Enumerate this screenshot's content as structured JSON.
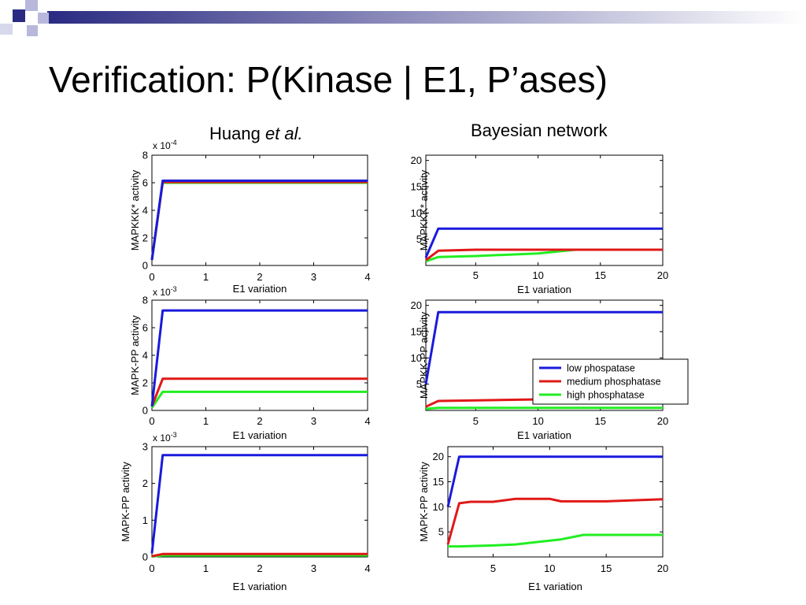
{
  "title": "Verification: P(Kinase | E1, P’ases)",
  "column_headers": {
    "left_prefix": "Huang ",
    "left_italic": "et al.",
    "right": "Bayesian network"
  },
  "colors": {
    "low": "#1a1adc",
    "medium": "#e01818",
    "high": "#22ee22",
    "decor_dark": "#2a2a82",
    "decor_light": "#b8b8dc"
  },
  "legend": {
    "placement": "inside-right",
    "entries": [
      {
        "label": "low phospatase",
        "color": "#1a1adc"
      },
      {
        "label": "medium phosphatase",
        "color": "#e01818"
      },
      {
        "label": "high phosphatase",
        "color": "#22ee22"
      }
    ]
  },
  "chart_data": [
    {
      "type": "line",
      "xlabel": "E1 variation",
      "ylabel": "MAPKKK* activity",
      "multiplier": "x 10",
      "exponent": "-4",
      "xlim": [
        0,
        4
      ],
      "ylim": [
        0,
        8
      ],
      "xticks": [
        0,
        1,
        2,
        3,
        4
      ],
      "yticks": [
        0,
        2,
        4,
        6,
        8
      ],
      "grid": false,
      "series": [
        {
          "color": "#1a1adc",
          "x": [
            0,
            0.2,
            4
          ],
          "y": [
            0.4,
            6.15,
            6.15
          ]
        },
        {
          "color": "#e01818",
          "x": [
            0,
            0.2,
            4
          ],
          "y": [
            0.4,
            6.05,
            6.05
          ]
        },
        {
          "color": "#22ee22",
          "x": [
            0,
            0.2,
            4
          ],
          "y": [
            0.4,
            6.0,
            6.0
          ]
        }
      ]
    },
    {
      "type": "line",
      "xlabel": "E1 variation",
      "ylabel": "MAPKKK* activity",
      "multiplier": "",
      "exponent": "",
      "xlim": [
        1,
        20
      ],
      "ylim": [
        0,
        21
      ],
      "xticks": [
        5,
        10,
        15,
        20
      ],
      "yticks": [
        5,
        10,
        15,
        20
      ],
      "grid": false,
      "series": [
        {
          "color": "#1a1adc",
          "x": [
            1,
            2,
            20
          ],
          "y": [
            1.5,
            7,
            7
          ]
        },
        {
          "color": "#e01818",
          "x": [
            1,
            2,
            5,
            10,
            13,
            20
          ],
          "y": [
            1,
            2.8,
            3.0,
            3.0,
            3.0,
            3.0
          ]
        },
        {
          "color": "#22ee22",
          "x": [
            1,
            2,
            5,
            10,
            13,
            20
          ],
          "y": [
            0.8,
            1.6,
            1.8,
            2.3,
            3.0,
            3.0
          ]
        }
      ]
    },
    {
      "type": "line",
      "xlabel": "E1 variation",
      "ylabel": "MAPK-PP activity",
      "multiplier": "x 10",
      "exponent": "-3",
      "xlim": [
        0,
        4
      ],
      "ylim": [
        0,
        8
      ],
      "xticks": [
        0,
        1,
        2,
        3,
        4
      ],
      "yticks": [
        0,
        2,
        4,
        6,
        8
      ],
      "grid": false,
      "series": [
        {
          "color": "#1a1adc",
          "x": [
            0,
            0.2,
            4
          ],
          "y": [
            0.3,
            7.25,
            7.25
          ]
        },
        {
          "color": "#e01818",
          "x": [
            0,
            0.2,
            4
          ],
          "y": [
            0.3,
            2.3,
            2.3
          ]
        },
        {
          "color": "#22ee22",
          "x": [
            0,
            0.2,
            4
          ],
          "y": [
            0.2,
            1.35,
            1.35
          ]
        }
      ]
    },
    {
      "type": "line",
      "xlabel": "E1 variation",
      "ylabel": "MAPKK-PP activity",
      "multiplier": "",
      "exponent": "",
      "xlim": [
        1,
        20
      ],
      "ylim": [
        0,
        21
      ],
      "xticks": [
        5,
        10,
        15,
        20
      ],
      "yticks": [
        5,
        10,
        15,
        20
      ],
      "grid": false,
      "series": [
        {
          "color": "#1a1adc",
          "x": [
            1,
            2,
            20
          ],
          "y": [
            5,
            18.7,
            18.7
          ]
        },
        {
          "color": "#e01818",
          "x": [
            1,
            2,
            5,
            10,
            15,
            20
          ],
          "y": [
            0.7,
            1.8,
            1.9,
            2.1,
            2.0,
            2.0
          ]
        },
        {
          "color": "#22ee22",
          "x": [
            1,
            2,
            20
          ],
          "y": [
            0.3,
            0.5,
            0.5
          ]
        }
      ]
    },
    {
      "type": "line",
      "xlabel": "E1 variation",
      "ylabel": "MAPK-PP activity",
      "multiplier": "x 10",
      "exponent": "-3",
      "xlim": [
        0,
        4
      ],
      "ylim": [
        0,
        3
      ],
      "xticks": [
        0,
        1,
        2,
        3,
        4
      ],
      "yticks": [
        0,
        1,
        2,
        3
      ],
      "grid": false,
      "series": [
        {
          "color": "#1a1adc",
          "x": [
            0,
            0.2,
            4
          ],
          "y": [
            0.1,
            2.77,
            2.77
          ]
        },
        {
          "color": "#e01818",
          "x": [
            0,
            0.2,
            4
          ],
          "y": [
            0.02,
            0.08,
            0.08
          ]
        },
        {
          "color": "#22ee22",
          "x": [
            0,
            0.2,
            4
          ],
          "y": [
            0.01,
            0.04,
            0.04
          ]
        }
      ]
    },
    {
      "type": "line",
      "xlabel": "E1 variation",
      "ylabel": "MAPK-PP activity",
      "multiplier": "",
      "exponent": "",
      "xlim": [
        1,
        20
      ],
      "ylim": [
        0,
        22
      ],
      "xticks": [
        5,
        10,
        15,
        20
      ],
      "yticks": [
        5,
        10,
        15,
        20
      ],
      "grid": false,
      "series": [
        {
          "color": "#1a1adc",
          "x": [
            1,
            2,
            20
          ],
          "y": [
            10,
            20,
            20
          ]
        },
        {
          "color": "#e01818",
          "x": [
            1,
            2,
            3,
            5,
            7,
            10,
            11,
            15,
            20
          ],
          "y": [
            2.5,
            10.7,
            11,
            11,
            11.6,
            11.6,
            11.1,
            11.1,
            11.5
          ]
        },
        {
          "color": "#22ee22",
          "x": [
            1,
            2,
            5,
            7,
            9,
            11,
            13,
            15,
            20
          ],
          "y": [
            2.1,
            2.1,
            2.3,
            2.5,
            3.0,
            3.5,
            4.4,
            4.4,
            4.4
          ]
        }
      ]
    }
  ]
}
